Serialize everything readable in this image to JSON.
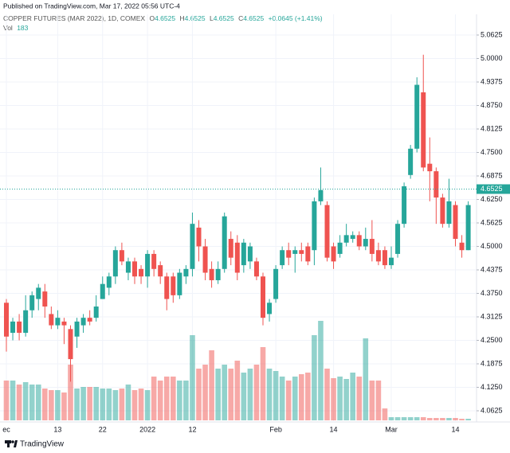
{
  "header": {
    "published": "Published on TradingView.com, Mar 17, 2022 05:56 UTC-4"
  },
  "legend": {
    "name": "COPPER FUTURES (MAR 2022), 1D, COMEX",
    "ohlc": [
      {
        "key": "O",
        "value": "4.6525"
      },
      {
        "key": "H",
        "value": "4.6525"
      },
      {
        "key": "L",
        "value": "4.6525"
      },
      {
        "key": "C",
        "value": "4.6525"
      }
    ],
    "change": "+0.0645 (+1.41%)",
    "volume_key": "Vol",
    "volume_value": "183"
  },
  "footer": {
    "brand": "TradingView"
  },
  "chart_data": {
    "type": "candlestick",
    "categories": [
      "ec",
      null,
      null,
      null,
      null,
      null,
      null,
      null,
      "13",
      null,
      null,
      null,
      null,
      null,
      null,
      "22",
      null,
      null,
      null,
      null,
      null,
      null,
      "2022",
      null,
      null,
      null,
      null,
      null,
      null,
      "12",
      null,
      null,
      null,
      null,
      null,
      null,
      null,
      null,
      null,
      null,
      null,
      null,
      "Feb",
      null,
      null,
      null,
      null,
      null,
      null,
      null,
      null,
      "14",
      null,
      null,
      null,
      null,
      null,
      null,
      null,
      null,
      "Mar",
      null,
      null,
      null,
      null,
      null,
      null,
      null,
      null,
      null,
      "14",
      null,
      null
    ],
    "open": [
      4.35,
      4.27,
      4.3,
      4.27,
      4.33,
      4.36,
      4.38,
      4.32,
      4.29,
      4.3,
      4.28,
      4.26,
      4.29,
      4.31,
      4.31,
      4.36,
      4.39,
      4.42,
      4.49,
      4.43,
      4.46,
      4.44,
      4.42,
      4.48,
      4.45,
      4.42,
      4.42,
      4.37,
      4.42,
      4.44,
      4.55,
      4.5,
      4.44,
      4.41,
      4.44,
      4.52,
      4.51,
      4.45,
      4.46,
      4.46,
      4.42,
      4.32,
      4.36,
      4.45,
      4.49,
      4.48,
      4.49,
      4.5,
      4.49,
      4.62,
      4.61,
      4.5,
      4.48,
      4.51,
      4.52,
      4.53,
      4.5,
      4.52,
      4.49,
      4.49,
      4.45,
      4.48,
      4.56,
      4.69,
      4.76,
      4.91,
      4.72,
      4.7,
      4.63,
      4.56,
      4.61,
      4.51,
      4.49
    ],
    "high": [
      4.36,
      4.31,
      4.32,
      4.37,
      4.38,
      4.4,
      4.4,
      4.34,
      4.33,
      4.31,
      4.29,
      4.31,
      4.32,
      4.33,
      4.37,
      4.42,
      4.43,
      4.5,
      4.51,
      4.47,
      4.47,
      4.45,
      4.49,
      4.49,
      4.46,
      4.43,
      4.43,
      4.44,
      4.45,
      4.59,
      4.57,
      4.52,
      4.46,
      4.46,
      4.59,
      4.54,
      4.53,
      4.52,
      4.51,
      4.47,
      4.43,
      4.36,
      4.45,
      4.5,
      4.51,
      4.5,
      4.51,
      4.51,
      4.63,
      4.71,
      4.62,
      4.51,
      4.53,
      4.56,
      4.54,
      4.54,
      4.55,
      4.57,
      4.51,
      4.5,
      4.5,
      4.57,
      4.67,
      4.77,
      4.95,
      5.01,
      4.79,
      4.71,
      4.64,
      4.68,
      4.62,
      4.53,
      4.62
    ],
    "low": [
      4.22,
      4.25,
      4.25,
      4.26,
      4.31,
      4.33,
      4.31,
      4.28,
      4.28,
      4.24,
      4.14,
      4.23,
      4.27,
      4.29,
      4.3,
      4.36,
      4.37,
      4.4,
      4.45,
      4.41,
      4.4,
      4.4,
      4.39,
      4.42,
      4.4,
      4.33,
      4.35,
      4.36,
      4.4,
      4.42,
      4.46,
      4.41,
      4.39,
      4.4,
      4.43,
      4.45,
      4.41,
      4.43,
      4.44,
      4.41,
      4.29,
      4.3,
      4.35,
      4.44,
      4.45,
      4.43,
      4.46,
      4.45,
      4.45,
      4.61,
      4.46,
      4.44,
      4.47,
      4.5,
      4.51,
      4.49,
      4.49,
      4.46,
      4.45,
      4.44,
      4.44,
      4.47,
      4.55,
      4.68,
      4.75,
      4.7,
      4.62,
      4.56,
      4.55,
      4.55,
      4.5,
      4.47,
      4.49
    ],
    "close": [
      4.26,
      4.3,
      4.27,
      4.33,
      4.37,
      4.39,
      4.34,
      4.29,
      4.31,
      4.29,
      4.2,
      4.3,
      4.31,
      4.3,
      4.34,
      4.4,
      4.42,
      4.49,
      4.46,
      4.46,
      4.42,
      4.42,
      4.48,
      4.44,
      4.42,
      4.36,
      4.37,
      4.43,
      4.44,
      4.56,
      4.5,
      4.43,
      4.41,
      4.44,
      4.58,
      4.47,
      4.43,
      4.51,
      4.5,
      4.42,
      4.31,
      4.35,
      4.44,
      4.49,
      4.47,
      4.49,
      4.48,
      4.46,
      4.62,
      4.65,
      4.47,
      4.46,
      4.51,
      4.53,
      4.53,
      4.5,
      4.52,
      4.48,
      4.46,
      4.45,
      4.47,
      4.56,
      4.66,
      4.76,
      4.93,
      4.71,
      4.7,
      4.63,
      4.56,
      4.62,
      4.52,
      4.49,
      4.61
    ],
    "volume": [
      50,
      50,
      45,
      48,
      45,
      45,
      40,
      38,
      38,
      35,
      70,
      40,
      42,
      42,
      42,
      40,
      40,
      38,
      40,
      45,
      38,
      40,
      38,
      55,
      50,
      55,
      55,
      50,
      50,
      107,
      65,
      70,
      88,
      65,
      70,
      65,
      75,
      60,
      65,
      70,
      92,
      65,
      62,
      55,
      50,
      55,
      58,
      60,
      107,
      125,
      65,
      53,
      55,
      52,
      60,
      55,
      103,
      50,
      50,
      15,
      4,
      4,
      4,
      4,
      4,
      4,
      3,
      3,
      3,
      3,
      3,
      2,
      2
    ],
    "up_color": "#26a69a",
    "down_color": "#ef5350",
    "current_price": 4.6525,
    "ylim": [
      4.0328,
      5.1176
    ],
    "yticks": [
      5.0625,
      {
        "value": 5.0,
        "label": "5.0000"
      },
      4.9375,
      {
        "value": 4.875,
        "label": "4.8750"
      },
      4.8125,
      {
        "value": 4.75,
        "label": "4.7500"
      },
      4.6875,
      {
        "value": 4.625,
        "label": "4.6250"
      },
      4.5625,
      {
        "value": 4.5,
        "label": "4.5000"
      },
      4.4375,
      {
        "value": 4.375,
        "label": "4.3750"
      },
      4.3125,
      {
        "value": 4.25,
        "label": "4.2500"
      },
      4.1875,
      {
        "value": 4.125,
        "label": "4.1250"
      },
      4.0625
    ],
    "grid": true
  }
}
